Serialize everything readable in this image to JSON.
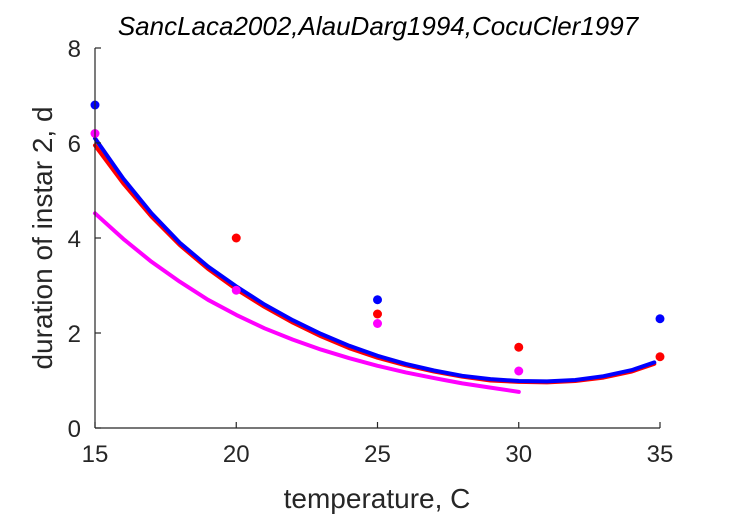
{
  "chart_data": {
    "type": "scatter",
    "title": "SancLaca2002,AlauDarg1994,CocuCler1997",
    "xlabel": "temperature, C",
    "ylabel": "duration of instar 2, d",
    "xlim": [
      15,
      35
    ],
    "ylim": [
      0,
      8
    ],
    "xticks": [
      15,
      20,
      25,
      30,
      35
    ],
    "yticks": [
      0,
      2,
      4,
      6,
      8
    ],
    "grid": false,
    "legend": "none",
    "series": [
      {
        "color": "#ff0000",
        "points": {
          "x": [
            20,
            25,
            30,
            35
          ],
          "y": [
            4.0,
            2.4,
            1.7,
            1.5
          ]
        },
        "curve": {
          "x": [
            15,
            16,
            17,
            18,
            19,
            20,
            21,
            22,
            23,
            24,
            25,
            26,
            27,
            28,
            29,
            30,
            31,
            32,
            33,
            34,
            34.8
          ],
          "y": [
            5.95,
            5.15,
            4.45,
            3.85,
            3.35,
            2.92,
            2.55,
            2.22,
            1.93,
            1.68,
            1.48,
            1.32,
            1.19,
            1.08,
            1.0,
            0.97,
            0.96,
            0.99,
            1.06,
            1.19,
            1.35
          ]
        }
      },
      {
        "color": "#0000ff",
        "points": {
          "x": [
            15,
            25,
            35
          ],
          "y": [
            6.8,
            2.7,
            2.3
          ]
        },
        "curve": {
          "x": [
            15,
            16,
            17,
            18,
            19,
            20,
            21,
            22,
            23,
            24,
            25,
            26,
            27,
            28,
            29,
            30,
            31,
            32,
            33,
            34,
            34.8
          ],
          "y": [
            6.1,
            5.25,
            4.52,
            3.9,
            3.4,
            2.98,
            2.6,
            2.27,
            1.98,
            1.73,
            1.52,
            1.35,
            1.21,
            1.1,
            1.03,
            0.99,
            0.98,
            1.01,
            1.09,
            1.22,
            1.38
          ]
        }
      },
      {
        "color": "#ff00ff",
        "points": {
          "x": [
            15,
            20,
            25,
            30
          ],
          "y": [
            6.2,
            2.9,
            2.2,
            1.2
          ]
        },
        "curve": {
          "x": [
            15,
            16,
            17,
            18,
            19,
            20,
            21,
            22,
            23,
            24,
            25,
            26,
            27,
            28,
            29,
            30
          ],
          "y": [
            4.52,
            3.98,
            3.5,
            3.08,
            2.7,
            2.38,
            2.1,
            1.86,
            1.65,
            1.47,
            1.31,
            1.17,
            1.05,
            0.94,
            0.85,
            0.76
          ]
        }
      }
    ]
  }
}
